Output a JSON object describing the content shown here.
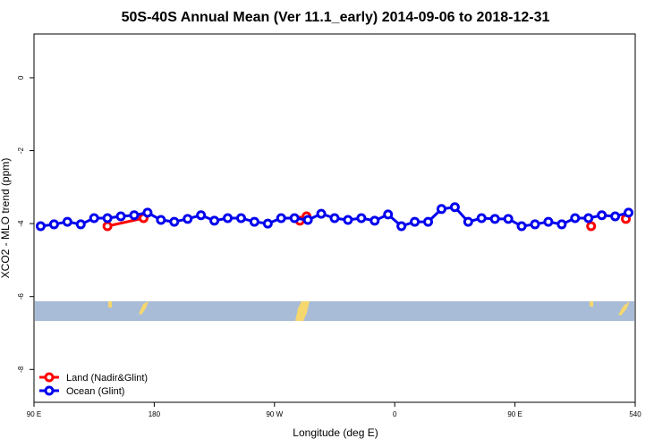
{
  "chart_data": {
    "type": "line",
    "title": "50S-40S Annual Mean (Ver 11.1_early)   2014-09-06 to 2018-12-31",
    "x_label": "Longitude (deg E)",
    "y_label": "XCO2 - MLO trend (ppm)",
    "xlim": [
      90,
      540
    ],
    "ylim": [
      -8.9,
      1.2
    ],
    "xticks": [
      {
        "value": 90,
        "label": "90 E"
      },
      180,
      {
        "value": 270,
        "label": "90 W"
      },
      {
        "value": 360,
        "label": "0"
      },
      {
        "value": 450,
        "label": "90 E"
      },
      540
    ],
    "yticks": [
      0,
      -2,
      -4,
      -6,
      -8
    ],
    "legend": "bottom-left",
    "series": [
      {
        "name": "Land (Nadir&Glint)",
        "color": "#ff0000",
        "x": [
          145,
          172,
          null,
          289,
          294,
          null,
          507,
          null,
          533
        ],
        "values": [
          -4.07,
          -3.85,
          null,
          -3.92,
          -3.8,
          null,
          -4.07,
          null,
          -3.87
        ]
      },
      {
        "name": "Ocean (Glint)",
        "color": "#0000ee",
        "x": [
          95,
          105,
          115,
          125,
          135,
          145,
          155,
          165,
          175,
          185,
          195,
          205,
          215,
          225,
          235,
          245,
          255,
          265,
          275,
          285,
          295,
          305,
          315,
          325,
          335,
          345,
          355,
          365,
          375,
          385,
          395,
          405,
          415,
          425,
          435,
          445,
          455,
          465,
          475,
          485,
          495,
          505,
          515,
          525,
          535
        ],
        "values": [
          -4.07,
          -4.02,
          -3.95,
          -4.02,
          -3.85,
          -3.85,
          -3.8,
          -3.77,
          -3.7,
          -3.9,
          -3.95,
          -3.87,
          -3.77,
          -3.92,
          -3.85,
          -3.85,
          -3.95,
          -4.0,
          -3.85,
          -3.85,
          -3.9,
          -3.73,
          -3.85,
          -3.9,
          -3.85,
          -3.92,
          -3.75,
          -4.07,
          -3.95,
          -3.95,
          -3.6,
          -3.55,
          -3.95,
          -3.85,
          -3.87,
          -3.87,
          -4.07,
          -4.02,
          -3.95,
          -4.02,
          -3.85,
          -3.85,
          -3.77,
          -3.8,
          -3.7
        ]
      }
    ]
  }
}
